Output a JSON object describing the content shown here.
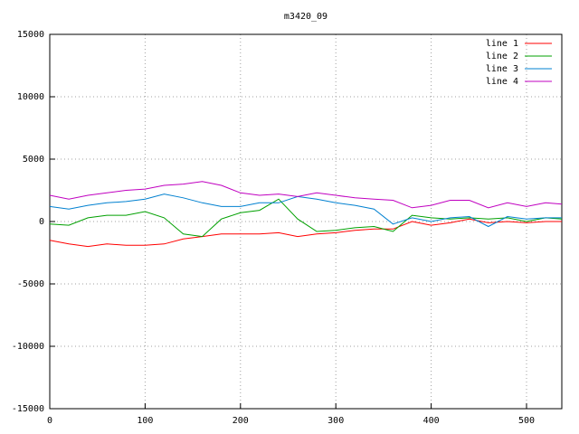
{
  "chart_data": {
    "type": "line",
    "title": "m3420_09",
    "x": [
      0,
      20,
      40,
      60,
      80,
      100,
      120,
      140,
      160,
      180,
      200,
      220,
      240,
      260,
      280,
      300,
      320,
      340,
      360,
      380,
      400,
      420,
      440,
      460,
      480,
      500,
      520,
      537
    ],
    "series": [
      {
        "name": "line 1",
        "color": "#ff0000",
        "values": [
          -1500,
          -1800,
          -2000,
          -1800,
          -1900,
          -1900,
          -1800,
          -1400,
          -1200,
          -1000,
          -1000,
          -1000,
          -900,
          -1200,
          -1000,
          -900,
          -700,
          -600,
          -600,
          0,
          -300,
          -100,
          200,
          -100,
          0,
          -100,
          0,
          0
        ]
      },
      {
        "name": "line 2",
        "color": "#00a000",
        "values": [
          -200,
          -300,
          300,
          500,
          500,
          800,
          300,
          -1000,
          -1200,
          200,
          700,
          900,
          1800,
          200,
          -800,
          -700,
          -500,
          -400,
          -800,
          500,
          300,
          200,
          300,
          200,
          300,
          0,
          300,
          200
        ]
      },
      {
        "name": "line 3",
        "color": "#0080d0",
        "values": [
          1200,
          1000,
          1300,
          1500,
          1600,
          1800,
          2200,
          1900,
          1500,
          1200,
          1200,
          1500,
          1500,
          2000,
          1800,
          1500,
          1300,
          1000,
          -200,
          300,
          0,
          300,
          400,
          -400,
          400,
          200,
          300,
          300
        ]
      },
      {
        "name": "line 4",
        "color": "#c000c0",
        "values": [
          2100,
          1800,
          2100,
          2300,
          2500,
          2600,
          2900,
          3000,
          3200,
          2900,
          2300,
          2100,
          2200,
          2000,
          2300,
          2100,
          1900,
          1800,
          1700,
          1100,
          1300,
          1700,
          1700,
          1100,
          1500,
          1200,
          1500,
          1400
        ]
      }
    ],
    "xlim": [
      0,
      537
    ],
    "ylim": [
      -15000,
      15000
    ],
    "xticks": [
      0,
      100,
      200,
      300,
      400,
      500
    ],
    "yticks": [
      -15000,
      -10000,
      -5000,
      0,
      5000,
      10000,
      15000
    ],
    "grid": true
  }
}
